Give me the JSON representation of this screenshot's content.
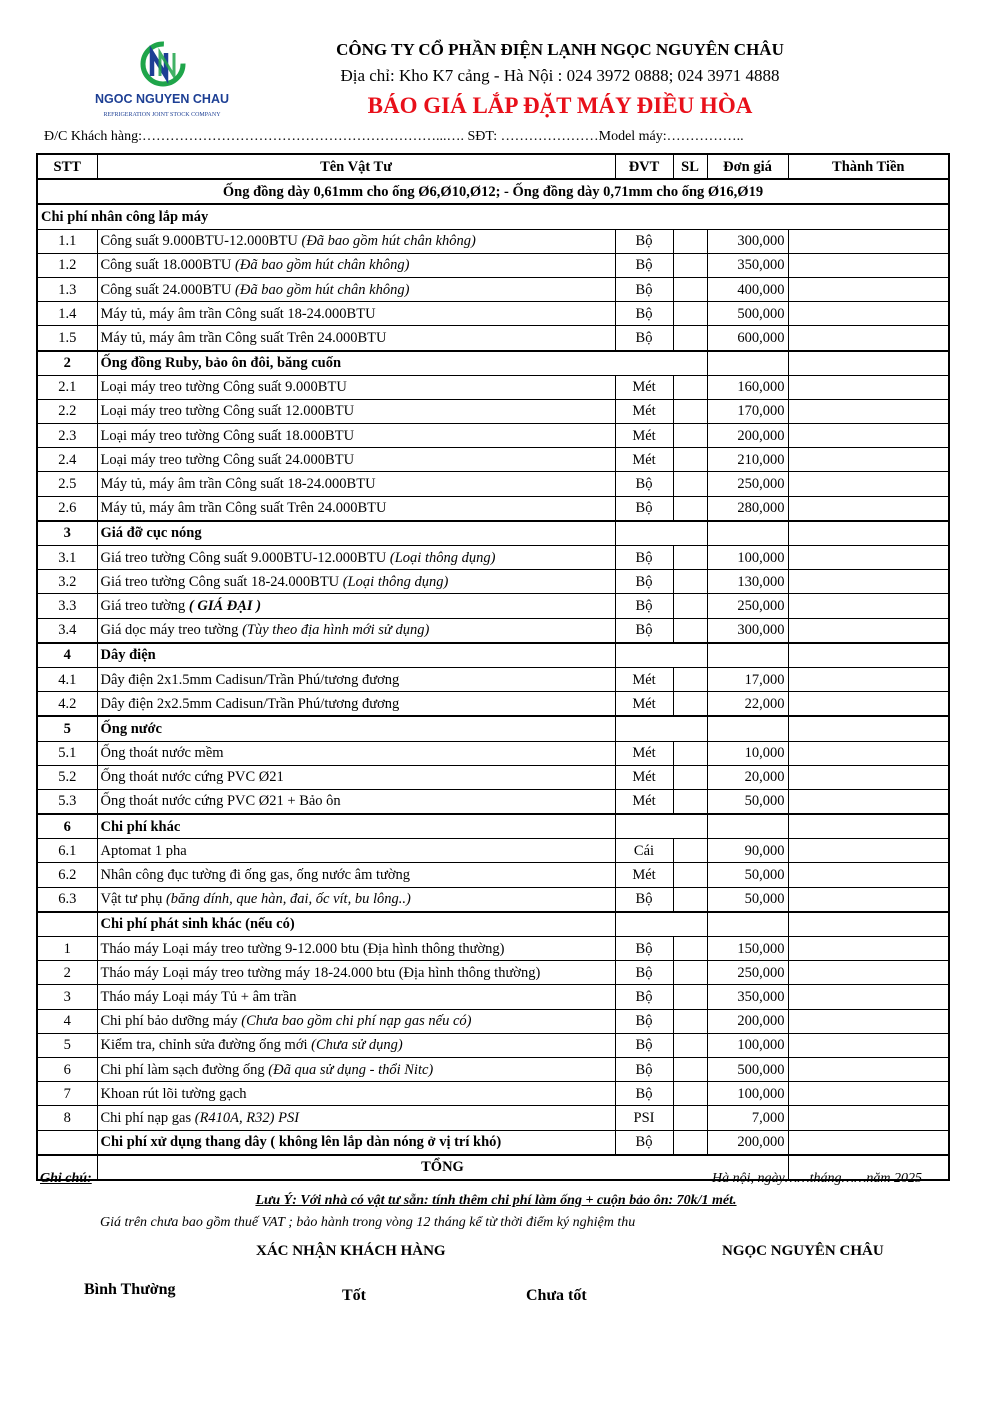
{
  "logo": {
    "brand": "NGOC NGUYEN CHAU",
    "tagline": "REFRIGERATION JOINT STOCK COMPANY",
    "colors": {
      "blue": "#1d3f94",
      "green": "#1fa54a"
    }
  },
  "header": {
    "company": "CÔNG TY CỔ PHẦN ĐIỆN LẠNH NGỌC NGUYÊN CHÂU",
    "address": "Địa chỉ: Kho K7 cảng - Hà Nội : 024 3972 0888; 024 3971 4888",
    "title": "BÁO GIÁ  LẮP ĐẶT MÁY ĐIỀU HÒA",
    "title_color": "#e8101a",
    "customer_line": "Đ/C Khách hàng:………………………………………………………...…. SĐT: …………………Model máy:……………..",
    "columns": [
      "STT",
      "Tên Vật Tư",
      "ĐVT",
      "SL",
      "Đơn giá",
      "Thành Tiền"
    ],
    "pipe_note": "Ống đồng dày 0,61mm cho ống Ø6,Ø10,Ø12;  - Ống đồng dày 0,71mm cho ống Ø16,Ø19"
  },
  "sections": [
    {
      "stt": "",
      "title": "Chi phí nhân công lắp máy",
      "full": true,
      "items": [
        {
          "stt": "1.1",
          "name": "Công suất 9.000BTU-12.000BTU ",
          "note": "(Đã bao gồm hút chân không)",
          "unit": "Bộ",
          "price": "300,000"
        },
        {
          "stt": "1.2",
          "name": "Công suất 18.000BTU ",
          "note": "(Đã bao gồm hút chân không)",
          "unit": "Bộ",
          "price": "350,000"
        },
        {
          "stt": "1.3",
          "name": "Công suất 24.000BTU ",
          "note": "(Đã bao gồm hút chân không)",
          "unit": "Bộ",
          "price": "400,000"
        },
        {
          "stt": "1.4",
          "name": "Máy tủ, máy âm trần Công suất 18-24.000BTU",
          "note": "",
          "unit": "Bộ",
          "price": "500,000"
        },
        {
          "stt": "1.5",
          "name": "Máy tủ, máy âm trần Công suất Trên 24.000BTU",
          "note": "",
          "unit": "Bộ",
          "price": "600,000"
        }
      ]
    },
    {
      "stt": "2",
      "title": "Ống đồng Ruby, bảo ôn đôi, băng cuốn",
      "wide": true,
      "items": [
        {
          "stt": "2.1",
          "name": "Loại máy treo tường Công suất 9.000BTU",
          "note": "",
          "unit": "Mét",
          "price": "160,000"
        },
        {
          "stt": "2.2",
          "name": "Loại máy treo tường Công suất 12.000BTU",
          "note": "",
          "unit": "Mét",
          "price": "170,000"
        },
        {
          "stt": "2.3",
          "name": "Loại máy treo tường Công suất 18.000BTU",
          "note": "",
          "unit": "Mét",
          "price": "200,000"
        },
        {
          "stt": "2.4",
          "name": "Loại máy treo tường Công suất 24.000BTU",
          "note": "",
          "unit": "Mét",
          "price": "210,000"
        },
        {
          "stt": "2.5",
          "name": "Máy tủ, máy âm trần Công suất 18-24.000BTU",
          "note": "",
          "unit": "Bộ",
          "price": "250,000"
        },
        {
          "stt": "2.6",
          "name": "Máy tủ, máy âm trần Công suất Trên 24.000BTU",
          "note": "",
          "unit": "Bộ",
          "price": "280,000"
        }
      ]
    },
    {
      "stt": "3",
      "title": "Giá đỡ cục nóng",
      "items": [
        {
          "stt": "3.1",
          "name": "Giá treo tường Công suất 9.000BTU-12.000BTU ",
          "note": "(Loại thông dụng)",
          "unit": "Bộ",
          "price": "100,000"
        },
        {
          "stt": "3.2",
          "name": "Giá treo tường Công suất 18-24.000BTU ",
          "note": "(Loại thông dụng)",
          "unit": "Bộ",
          "price": "130,000"
        },
        {
          "stt": "3.3",
          "name": "Giá treo tường ",
          "note": "( GIÁ ĐẠI )",
          "note_bold": true,
          "unit": "Bộ",
          "price": "250,000"
        },
        {
          "stt": "3.4",
          "name": "Giá dọc máy treo tường ",
          "note": "(Tùy theo địa hình mới sử dụng)",
          "unit": "Bộ",
          "price": "300,000"
        }
      ]
    },
    {
      "stt": "4",
      "title": "Dây điện",
      "items": [
        {
          "stt": "4.1",
          "name": "Dây điện 2x1.5mm Cadisun/Trần Phú/tương đương",
          "note": "",
          "unit": "Mét",
          "price": "17,000"
        },
        {
          "stt": "4.2",
          "name": "Dây điện 2x2.5mm Cadisun/Trần Phú/tương đương",
          "note": "",
          "unit": "Mét",
          "price": "22,000"
        }
      ]
    },
    {
      "stt": "5",
      "title": "Ống nước",
      "items": [
        {
          "stt": "5.1",
          "name": "Ống thoát nước mềm",
          "note": "",
          "unit": "Mét",
          "price": "10,000"
        },
        {
          "stt": "5.2",
          "name": "Ống thoát nước cứng PVC Ø21",
          "note": "",
          "unit": "Mét",
          "price": "20,000"
        },
        {
          "stt": "5.3",
          "name": "Ống thoát nước cứng PVC Ø21 + Bảo ôn",
          "note": "",
          "unit": "Mét",
          "price": "50,000"
        }
      ]
    },
    {
      "stt": "6",
      "title": "Chi phí khác",
      "items": [
        {
          "stt": "6.1",
          "name": "Aptomat 1 pha",
          "note": "",
          "unit": "Cái",
          "price": "90,000"
        },
        {
          "stt": "6.2",
          "name": "Nhân công đục tường đi ống gas, ống nước âm tường",
          "note": "",
          "unit": "Mét",
          "price": "50,000"
        },
        {
          "stt": "6.3",
          "name": "Vật tư phụ ",
          "note": "(băng dính, que hàn, đai, ốc vít, bu lông..)",
          "unit": "Bộ",
          "price": "50,000"
        }
      ]
    },
    {
      "stt": "",
      "title": "Chi phí phát sinh khác (nếu có)",
      "items": [
        {
          "stt": "1",
          "name": "Tháo máy Loại máy treo tường 9-12.000  btu (Địa hình thông thường)",
          "note": "",
          "unit": "Bộ",
          "price": "150,000"
        },
        {
          "stt": "2",
          "name": "Tháo máy Loại máy treo tường máy 18-24.000 btu (Địa hình thông thường)",
          "note": "",
          "unit": "Bộ",
          "price": "250,000"
        },
        {
          "stt": "3",
          "name": "Tháo máy Loại máy Tủ + âm trần",
          "note": "",
          "unit": "Bộ",
          "price": "350,000"
        },
        {
          "stt": "4",
          "name": "Chi phí bảo dưỡng máy ",
          "note": "(Chưa bao gồm chi phí nạp gas nếu có)",
          "unit": "Bộ",
          "price": "200,000"
        },
        {
          "stt": "5",
          "name": "Kiểm tra, chỉnh sửa đường ống mới ",
          "note": "(Chưa sử dụng)",
          "unit": "Bộ",
          "price": "100,000"
        },
        {
          "stt": "6",
          "name": "Chi phí làm sạch đường ống ",
          "note": "(Đã qua sử dụng - thổi Nitc)",
          "unit": "Bộ",
          "price": "500,000"
        },
        {
          "stt": "7",
          "name": "Khoan rút lõi tường gạch",
          "note": "",
          "unit": "Bộ",
          "price": "100,000"
        },
        {
          "stt": "8",
          "name": "Chi phí nạp gas ",
          "note": "(R410A, R32) PSI",
          "unit": "PSI",
          "price": "7,000"
        },
        {
          "stt": "",
          "name": "Chi phí xử dụng thang dây ( không lên lắp dàn nóng ở vị trí khó)",
          "note": "",
          "bold": true,
          "unit": "Bộ",
          "price": "200,000"
        }
      ]
    }
  ],
  "total_label": "TỔNG",
  "footer": {
    "note_heading": "Ghi chú:",
    "date": "Hà nội, ngày……tháng……năm 2025",
    "remark": "Lưu Ý: Với nhà có vật tư sẵn:  tính thêm chi phí làm ống + cuộn bảo ôn: 70k/1 mét.",
    "vat": "Giá trên chưa bao gồm thuế VAT ; bảo hành trong vòng 12 tháng kể từ thời điểm ký nghiệm thu",
    "confirm_customer": "XÁC NHẬN KHÁCH HÀNG",
    "confirm_company": "NGỌC NGUYÊN CHÂU",
    "ratings": [
      "Bình Thường",
      "Tốt",
      "Chưa tốt"
    ]
  }
}
